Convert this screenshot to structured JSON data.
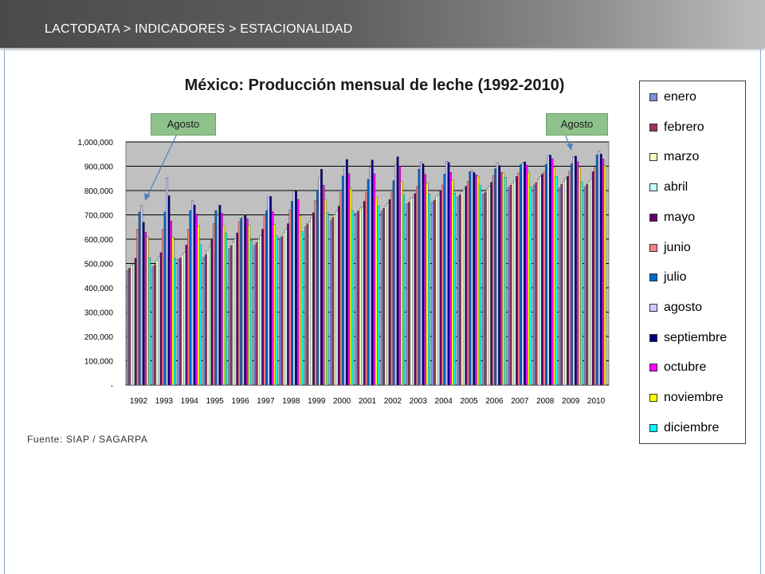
{
  "header": {
    "breadcrumb": "LACTODATA > INDICADORES > ESTACIONALIDAD"
  },
  "source_note": "Fuente: SIAP / SAGARPA",
  "callouts": {
    "left": "Agosto",
    "right": "Agosto"
  },
  "colors": {
    "header_dark": "#4a4a4a",
    "plot_background": "#c0c0c0",
    "callout_fill": "#8fc28a",
    "months": [
      "#7b8fd9",
      "#993366",
      "#ffffcc",
      "#ccffff",
      "#660066",
      "#ff8080",
      "#0066cc",
      "#ccccff",
      "#000080",
      "#ff00ff",
      "#ffff00",
      "#00ffff"
    ]
  },
  "chart_data": {
    "type": "bar",
    "title": "México: Producción mensual de leche (1992-2010)",
    "xlabel": "",
    "ylabel": "",
    "ylim": [
      0,
      1000000
    ],
    "yticks": [
      0,
      100000,
      200000,
      300000,
      400000,
      500000,
      600000,
      700000,
      800000,
      900000,
      1000000
    ],
    "ytick_labels": [
      "-",
      "100,000",
      "200,000",
      "300,000",
      "400,000",
      "500,000",
      "600,000",
      "700,000",
      "800,000",
      "900,000",
      "1,000,000"
    ],
    "grid": true,
    "legend_position": "right",
    "categories": [
      "1992",
      "1993",
      "1994",
      "1995",
      "1996",
      "1997",
      "1998",
      "1999",
      "2000",
      "2001",
      "2002",
      "2003",
      "2004",
      "2005",
      "2006",
      "2007",
      "2008",
      "2009",
      "2010"
    ],
    "series": [
      {
        "name": "enero",
        "values": [
          472000,
          487000,
          518000,
          525000,
          562000,
          575000,
          604000,
          651000,
          676000,
          708000,
          716000,
          746000,
          754000,
          774000,
          786000,
          813000,
          823000,
          812000,
          815000
        ]
      },
      {
        "name": "febrero",
        "values": [
          481000,
          495000,
          522000,
          536000,
          573000,
          586000,
          611000,
          663000,
          689000,
          716000,
          727000,
          752000,
          761000,
          783000,
          792000,
          822000,
          833000,
          826000,
          826000
        ]
      },
      {
        "name": "marzo",
        "values": [
          492000,
          512000,
          535000,
          553000,
          588000,
          600000,
          629000,
          672000,
          701000,
          728000,
          736000,
          768000,
          774000,
          796000,
          806000,
          832000,
          846000,
          838000,
          838000
        ]
      },
      {
        "name": "abril",
        "values": [
          498000,
          528000,
          545000,
          570000,
          602000,
          614000,
          641000,
          688000,
          716000,
          732000,
          747000,
          773000,
          783000,
          806000,
          818000,
          842000,
          856000,
          847000,
          848000
        ]
      },
      {
        "name": "mayo",
        "values": [
          522000,
          545000,
          576000,
          598000,
          626000,
          641000,
          664000,
          709000,
          736000,
          756000,
          763000,
          788000,
          799000,
          818000,
          834000,
          858000,
          867000,
          858000,
          878000
        ]
      },
      {
        "name": "junio",
        "values": [
          640000,
          640000,
          640000,
          664000,
          672000,
          694000,
          720000,
          760000,
          791000,
          791000,
          791000,
          817000,
          823000,
          838000,
          862000,
          872000,
          876000,
          879000,
          897000
        ]
      },
      {
        "name": "julio",
        "values": [
          712000,
          712000,
          718000,
          718000,
          686000,
          718000,
          756000,
          802000,
          860000,
          846000,
          841000,
          888000,
          868000,
          878000,
          890000,
          907000,
          908000,
          910000,
          947000
        ]
      },
      {
        "name": "agosto",
        "values": [
          738000,
          852000,
          758000,
          700000,
          690000,
          774000,
          798000,
          855000,
          899000,
          897000,
          908000,
          918000,
          920000,
          882000,
          914000,
          913000,
          942000,
          940000,
          963000
        ]
      },
      {
        "name": "septiembre",
        "values": [
          670000,
          779000,
          741000,
          740000,
          700000,
          776000,
          798000,
          888000,
          928000,
          926000,
          939000,
          910000,
          916000,
          875000,
          903000,
          918000,
          946000,
          942000,
          950000
        ]
      },
      {
        "name": "octubre",
        "values": [
          629000,
          675000,
          704000,
          707000,
          684000,
          714000,
          764000,
          822000,
          869000,
          869000,
          900000,
          867000,
          875000,
          865000,
          874000,
          905000,
          931000,
          918000,
          930000
        ]
      },
      {
        "name": "noviembre",
        "values": [
          608000,
          608000,
          655000,
          655000,
          658000,
          660000,
          698000,
          761000,
          808000,
          773000,
          838000,
          832000,
          843000,
          859000,
          872000,
          875000,
          895000,
          898000,
          902000
        ]
      },
      {
        "name": "diciembre",
        "values": [
          522000,
          522000,
          578000,
          625000,
          595000,
          614000,
          631000,
          710000,
          716000,
          737000,
          782000,
          786000,
          789000,
          821000,
          855000,
          814000,
          858000,
          836000,
          0
        ]
      }
    ]
  }
}
